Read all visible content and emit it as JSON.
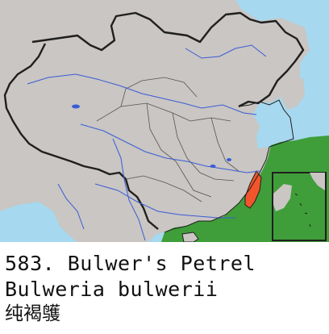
{
  "colors": {
    "sea": "#a6d8ef",
    "land": "#c9c6c3",
    "range": "#3f9e39",
    "highlight": "#f2552c",
    "border": "#1f1f1f",
    "river": "#3b5bd6",
    "background": "#ffffff"
  },
  "caption": {
    "number_and_name": "583. Bulwer's Petrel",
    "scientific_name": "Bulweria bulwerii",
    "chinese_name": "纯褐鹱"
  }
}
